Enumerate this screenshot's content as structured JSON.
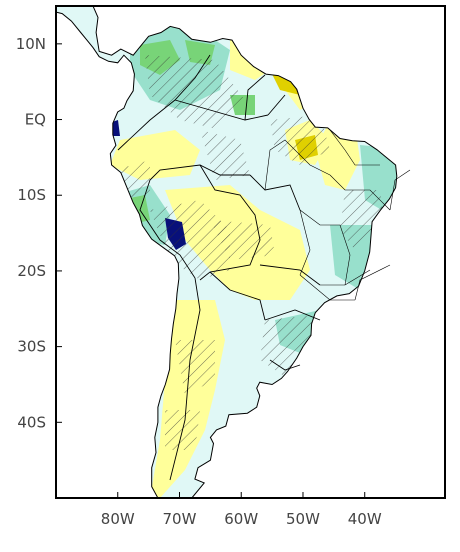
{
  "map": {
    "projection": "lat-lon",
    "lon_range": [
      -90,
      -27
    ],
    "lat_range": [
      -50,
      15
    ],
    "y_axis": {
      "ticks": [
        {
          "lat": 10,
          "label": "10N"
        },
        {
          "lat": 0,
          "label": "EQ"
        },
        {
          "lat": -10,
          "label": "10S"
        },
        {
          "lat": -20,
          "label": "20S"
        },
        {
          "lat": -30,
          "label": "30S"
        },
        {
          "lat": -40,
          "label": "40S"
        }
      ]
    },
    "x_axis": {
      "ticks": [
        {
          "lon": -80,
          "label": "80W"
        },
        {
          "lon": -70,
          "label": "70W"
        },
        {
          "lon": -60,
          "label": "60W"
        },
        {
          "lon": -50,
          "label": "50W"
        },
        {
          "lon": -40,
          "label": "40W"
        }
      ]
    },
    "fill_colors": {
      "light_cyan": "#e0f8f6",
      "teal": "#98e0cc",
      "green": "#78d478",
      "yellow": "#ffff9a",
      "gold": "#e0d000",
      "brown": "#8b4a14",
      "navy": "#08107a"
    },
    "features": [
      "coastlines",
      "national borders",
      "state borders",
      "significance hatching"
    ]
  }
}
